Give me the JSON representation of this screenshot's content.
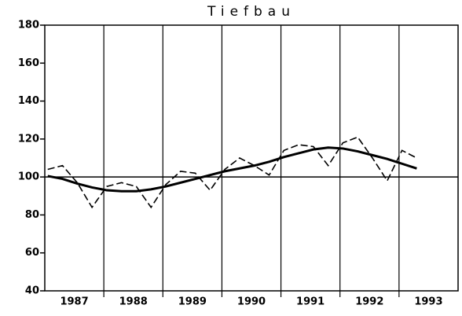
{
  "chart_data": {
    "type": "line",
    "title": "Tiefbau",
    "categories": [
      "1987",
      "1988",
      "1989",
      "1990",
      "1991",
      "1992",
      "1993"
    ],
    "xlim": [
      1987,
      1994
    ],
    "x": [
      1987.05,
      1987.3,
      1987.55,
      1987.8,
      1988.05,
      1988.3,
      1988.55,
      1988.8,
      1989.05,
      1989.3,
      1989.55,
      1989.8,
      1990.05,
      1990.3,
      1990.55,
      1990.8,
      1991.05,
      1991.3,
      1991.55,
      1991.8,
      1992.05,
      1992.3,
      1992.55,
      1992.8,
      1993.05,
      1993.3
    ],
    "series": [
      {
        "color": "#000000",
        "style": "dashed",
        "values": [
          104,
          106,
          97,
          84,
          95,
          97,
          95,
          84,
          96,
          103,
          102,
          93,
          104,
          110,
          106,
          101,
          114,
          117,
          116,
          106,
          118,
          121,
          110,
          98,
          114,
          110
        ]
      },
      {
        "color": "#000000",
        "style": "solid",
        "values": [
          100.5,
          99,
          96.5,
          94.5,
          93,
          92.5,
          92.5,
          93.5,
          95,
          97,
          99,
          101,
          103,
          104.5,
          106,
          108,
          110.5,
          112.5,
          114.5,
          115.5,
          115,
          113.5,
          111.5,
          109.5,
          107,
          104.5
        ]
      }
    ],
    "ylim": [
      40,
      180
    ],
    "yticks": [
      40,
      60,
      80,
      100,
      120,
      140,
      160,
      180
    ],
    "reference_line": 100,
    "grid": true
  }
}
